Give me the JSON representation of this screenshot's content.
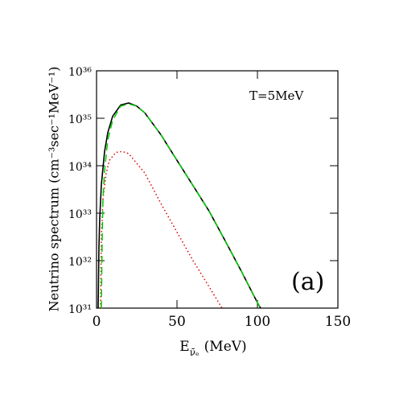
{
  "chart_data": {
    "type": "line",
    "y_label": "Neutrino spectrum (cm⁻³sec⁻¹MeV⁻¹)",
    "x_label": {
      "main": "E",
      "sub": "ν̄ₑ",
      "unit": "(MeV)"
    },
    "annotations": [
      "T=5MeV",
      "(a)"
    ],
    "xlim": [
      0,
      150
    ],
    "xticks": [
      0,
      50,
      100,
      150
    ],
    "ylim": [
      1e+31,
      1e+36
    ],
    "log_y": true,
    "yticks": [
      {
        "value": 1e+31,
        "label": "10³¹"
      },
      {
        "value": 1e+32,
        "label": "10³²"
      },
      {
        "value": 1e+33,
        "label": "10³³"
      },
      {
        "value": 1e+34,
        "label": "10³⁴"
      },
      {
        "value": 1e+35,
        "label": "10³⁵"
      },
      {
        "value": 1e+36,
        "label": "10³⁶"
      }
    ],
    "series": [
      {
        "color": "#e00000",
        "style": "dotted",
        "x": [
          2.5,
          3,
          4,
          6,
          8,
          12,
          16,
          20,
          30,
          40,
          50,
          60,
          70,
          78
        ],
        "values": [
          1e+31,
          3e+32,
          2e+33,
          7e+33,
          1.3e+34,
          1.9e+34,
          2e+34,
          1.8e+34,
          7e+33,
          1.6e+33,
          4e+32,
          1e+32,
          2.8e+31,
          1e+31
        ]
      },
      {
        "color": "#000000",
        "style": "solid",
        "x": [
          1,
          1.5,
          2,
          3,
          5,
          7,
          10,
          15,
          20,
          25,
          30,
          40,
          50,
          60,
          70,
          80,
          90,
          100,
          102
        ],
        "values": [
          1e+31,
          2e+32,
          7.9e+32,
          4e+33,
          2e+34,
          5e+34,
          1.1e+35,
          1.9e+35,
          2.1e+35,
          1.8e+35,
          1.3e+35,
          4.5e+34,
          1.3e+34,
          3.8e+33,
          1.1e+33,
          2.6e+32,
          6e+31,
          1.3e+31,
          1e+31
        ]
      },
      {
        "color": "#00cc00",
        "style": "dashed",
        "x": [
          3,
          3.5,
          4,
          5,
          7,
          10,
          15,
          20,
          25,
          30,
          40,
          50,
          60,
          70,
          80,
          90,
          100,
          102
        ],
        "values": [
          1e+31,
          3e+32,
          2e+33,
          8e+33,
          3.5e+34,
          9e+34,
          1.8e+35,
          2e+35,
          1.8e+35,
          1.3e+35,
          4.5e+34,
          1.3e+34,
          3.8e+33,
          1.1e+33,
          2.6e+32,
          6e+31,
          1.3e+31,
          1e+31
        ]
      }
    ]
  }
}
